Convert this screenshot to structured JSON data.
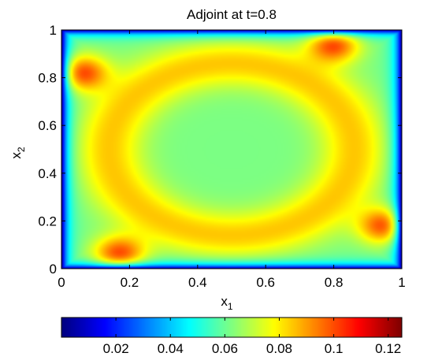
{
  "chart_data": {
    "type": "heatmap",
    "title": "Adjoint at t=0.8",
    "xlabel": {
      "base": "x",
      "sub": "1"
    },
    "ylabel": {
      "base": "x",
      "sub": "2"
    },
    "xlim": [
      0,
      1
    ],
    "ylim": [
      0,
      1
    ],
    "x_ticks": [
      0,
      0.2,
      0.4,
      0.6,
      0.8,
      1
    ],
    "x_tick_labels": [
      "0",
      "0.2",
      "0.4",
      "0.6",
      "0.8",
      "1"
    ],
    "y_ticks": [
      0,
      0.2,
      0.4,
      0.6,
      0.8,
      1
    ],
    "y_tick_labels": [
      "0",
      "0.2",
      "0.4",
      "0.6",
      "0.8",
      "1"
    ],
    "colormap": "jet",
    "colorbar": {
      "orientation": "horizontal",
      "placement": "bottom",
      "clim": [
        0.0,
        0.125
      ],
      "ticks": [
        0.02,
        0.04,
        0.06,
        0.08,
        0.1,
        0.12
      ],
      "tick_labels": [
        "0.02",
        "0.04",
        "0.06",
        "0.08",
        "0.1",
        "0.12"
      ]
    },
    "field": {
      "boundary_value": 0.0,
      "center_value": 0.062,
      "ring_value": 0.085,
      "peaks": [
        {
          "x": 0.06,
          "y": 0.82,
          "value": 0.125
        },
        {
          "x": 0.8,
          "y": 0.94,
          "value": 0.125
        },
        {
          "x": 0.95,
          "y": 0.18,
          "value": 0.125
        },
        {
          "x": 0.17,
          "y": 0.06,
          "value": 0.125
        }
      ]
    },
    "grid": false
  }
}
